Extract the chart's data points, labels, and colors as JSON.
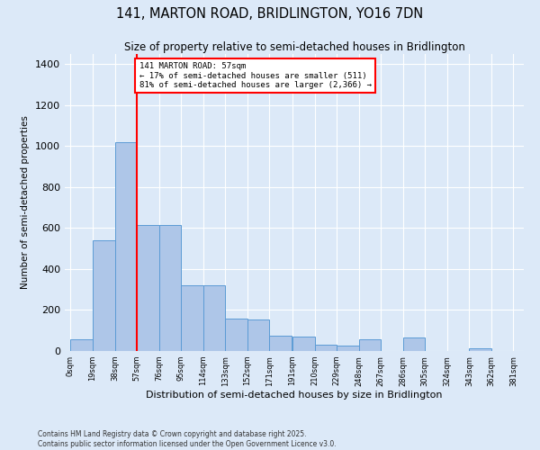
{
  "title": "141, MARTON ROAD, BRIDLINGTON, YO16 7DN",
  "subtitle": "Size of property relative to semi-detached houses in Bridlington",
  "xlabel": "Distribution of semi-detached houses by size in Bridlington",
  "ylabel": "Number of semi-detached properties",
  "footnote1": "Contains HM Land Registry data © Crown copyright and database right 2025.",
  "footnote2": "Contains public sector information licensed under the Open Government Licence v3.0.",
  "annotation_title": "141 MARTON ROAD: 57sqm",
  "annotation_line1": "← 17% of semi-detached houses are smaller (511)",
  "annotation_line2": "81% of semi-detached houses are larger (2,366) →",
  "property_size": 57,
  "bar_left_edges": [
    0,
    19,
    38,
    57,
    76,
    95,
    114,
    133,
    152,
    171,
    191,
    210,
    229,
    248,
    267,
    286,
    305,
    324,
    343,
    362
  ],
  "bar_labels": [
    "0sqm",
    "19sqm",
    "38sqm",
    "57sqm",
    "76sqm",
    "95sqm",
    "114sqm",
    "133sqm",
    "152sqm",
    "171sqm",
    "191sqm",
    "210sqm",
    "229sqm",
    "248sqm",
    "267sqm",
    "286sqm",
    "305sqm",
    "324sqm",
    "343sqm",
    "362sqm",
    "381sqm"
  ],
  "bar_heights": [
    55,
    540,
    1020,
    615,
    615,
    320,
    320,
    160,
    155,
    75,
    70,
    30,
    25,
    55,
    0,
    65,
    0,
    0,
    15,
    0
  ],
  "bar_color": "#aec6e8",
  "bar_edge_color": "#5b9bd5",
  "vline_x": 57,
  "vline_color": "red",
  "ylim": [
    0,
    1450
  ],
  "yticks": [
    0,
    200,
    400,
    600,
    800,
    1000,
    1200,
    1400
  ],
  "background_color": "#dce9f8",
  "grid_color": "white",
  "annotation_box_color": "white",
  "annotation_box_edge": "red"
}
